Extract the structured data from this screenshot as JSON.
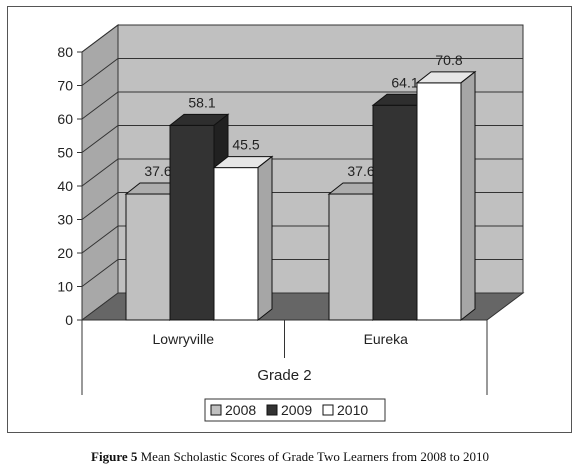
{
  "chart_data": {
    "type": "bar",
    "categories": [
      "Lowryville",
      "Eureka"
    ],
    "group_label": "Grade 2",
    "series": [
      {
        "name": "2008",
        "values": [
          37.6,
          37.6
        ],
        "color": "#c0c0c0"
      },
      {
        "name": "2009",
        "values": [
          58.1,
          64.1
        ],
        "color": "#333333"
      },
      {
        "name": "2010",
        "values": [
          45.5,
          70.8
        ],
        "color": "#ffffff"
      }
    ],
    "ylim": [
      0,
      80
    ],
    "yticks": [
      0,
      10,
      20,
      30,
      40,
      50,
      60,
      70,
      80
    ],
    "grid": true,
    "legend_position": "bottom"
  },
  "caption": {
    "label": "Figure 5",
    "text": " Mean Scholastic Scores of Grade Two Learners from 2008 to 2010"
  }
}
